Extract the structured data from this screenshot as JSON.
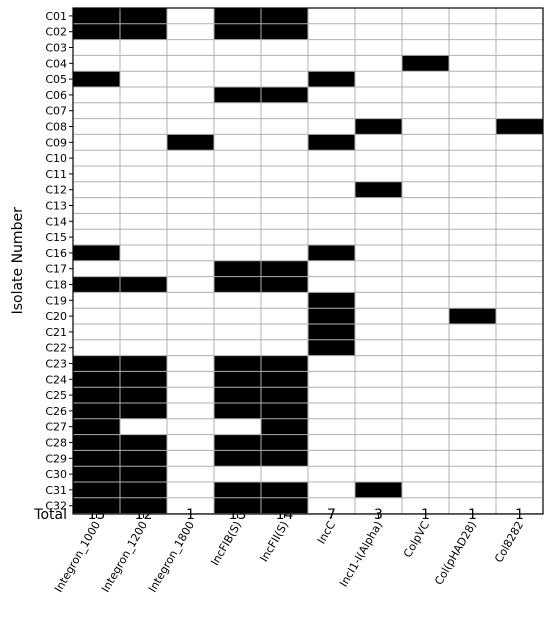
{
  "chart_data": {
    "type": "heatmap",
    "ylabel": "Isolate Number",
    "total_label": "Total",
    "columns": [
      "Integron_1000",
      "Integron_1200",
      "Integron_1800",
      "IncFIB(S)",
      "IncFII(S)",
      "IncC",
      "IncI1-I(Alpha)",
      "ColpVC",
      "Col(pHAD28)",
      "Col8282"
    ],
    "rows": [
      "C01",
      "C02",
      "C03",
      "C04",
      "C05",
      "C06",
      "C07",
      "C08",
      "C09",
      "C10",
      "C11",
      "C12",
      "C13",
      "C14",
      "C15",
      "C16",
      "C17",
      "C18",
      "C19",
      "C20",
      "C21",
      "C22",
      "C23",
      "C24",
      "C25",
      "C26",
      "C27",
      "C28",
      "C29",
      "C30",
      "C31",
      "C32"
    ],
    "matrix": [
      [
        1,
        1,
        0,
        1,
        1,
        0,
        0,
        0,
        0,
        0
      ],
      [
        1,
        1,
        0,
        1,
        1,
        0,
        0,
        0,
        0,
        0
      ],
      [
        0,
        0,
        0,
        0,
        0,
        0,
        0,
        0,
        0,
        0
      ],
      [
        0,
        0,
        0,
        0,
        0,
        0,
        0,
        1,
        0,
        0
      ],
      [
        1,
        0,
        0,
        0,
        0,
        1,
        0,
        0,
        0,
        0
      ],
      [
        0,
        0,
        0,
        1,
        1,
        0,
        0,
        0,
        0,
        0
      ],
      [
        0,
        0,
        0,
        0,
        0,
        0,
        0,
        0,
        0,
        0
      ],
      [
        0,
        0,
        0,
        0,
        0,
        0,
        1,
        0,
        0,
        1
      ],
      [
        0,
        0,
        1,
        0,
        0,
        1,
        0,
        0,
        0,
        0
      ],
      [
        0,
        0,
        0,
        0,
        0,
        0,
        0,
        0,
        0,
        0
      ],
      [
        0,
        0,
        0,
        0,
        0,
        0,
        0,
        0,
        0,
        0
      ],
      [
        0,
        0,
        0,
        0,
        0,
        0,
        1,
        0,
        0,
        0
      ],
      [
        0,
        0,
        0,
        0,
        0,
        0,
        0,
        0,
        0,
        0
      ],
      [
        0,
        0,
        0,
        0,
        0,
        0,
        0,
        0,
        0,
        0
      ],
      [
        0,
        0,
        0,
        0,
        0,
        0,
        0,
        0,
        0,
        0
      ],
      [
        1,
        0,
        0,
        0,
        0,
        1,
        0,
        0,
        0,
        0
      ],
      [
        0,
        0,
        0,
        1,
        1,
        0,
        0,
        0,
        0,
        0
      ],
      [
        1,
        1,
        0,
        1,
        1,
        0,
        0,
        0,
        0,
        0
      ],
      [
        0,
        0,
        0,
        0,
        0,
        1,
        0,
        0,
        0,
        0
      ],
      [
        0,
        0,
        0,
        0,
        0,
        1,
        0,
        0,
        1,
        0
      ],
      [
        0,
        0,
        0,
        0,
        0,
        1,
        0,
        0,
        0,
        0
      ],
      [
        0,
        0,
        0,
        0,
        0,
        1,
        0,
        0,
        0,
        0
      ],
      [
        1,
        1,
        0,
        1,
        1,
        0,
        0,
        0,
        0,
        0
      ],
      [
        1,
        1,
        0,
        1,
        1,
        0,
        0,
        0,
        0,
        0
      ],
      [
        1,
        1,
        0,
        1,
        1,
        0,
        0,
        0,
        0,
        0
      ],
      [
        1,
        1,
        0,
        1,
        1,
        0,
        0,
        0,
        0,
        0
      ],
      [
        1,
        0,
        0,
        0,
        1,
        0,
        0,
        0,
        0,
        0
      ],
      [
        1,
        1,
        0,
        1,
        1,
        0,
        0,
        0,
        0,
        0
      ],
      [
        1,
        1,
        0,
        1,
        1,
        0,
        0,
        0,
        0,
        0
      ],
      [
        1,
        1,
        0,
        0,
        0,
        0,
        0,
        0,
        0,
        0
      ],
      [
        1,
        1,
        0,
        1,
        1,
        0,
        1,
        0,
        0,
        0
      ],
      [
        1,
        1,
        0,
        1,
        1,
        0,
        0,
        0,
        0,
        0
      ]
    ],
    "totals": [
      "15",
      "12",
      "1",
      "13",
      "14",
      "7",
      "3",
      "1",
      "1",
      "1"
    ],
    "colors": {
      "present": "#000000",
      "absent": "#ffffff",
      "grid": "#b0b0b0",
      "frame": "#000000"
    },
    "grid": true
  }
}
